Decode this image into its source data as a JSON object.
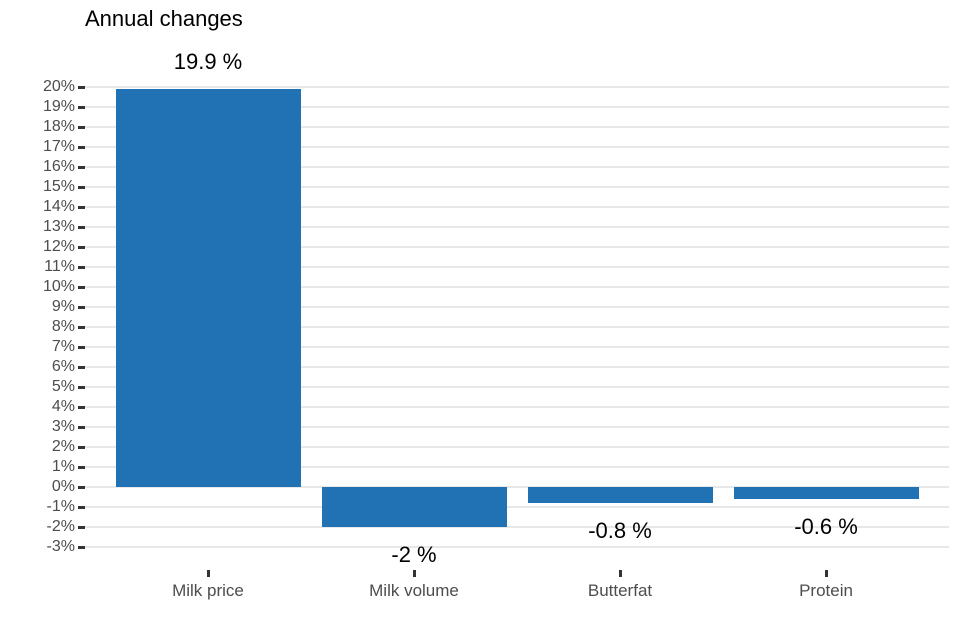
{
  "chart_data": {
    "type": "bar",
    "title": "Annual changes",
    "categories": [
      "Milk price",
      "Milk volume",
      "Butterfat",
      "Protein"
    ],
    "values": [
      19.9,
      -2,
      -0.8,
      -0.6
    ],
    "value_labels": [
      "19.9 %",
      "-2 %",
      "-0.8 %",
      "-0.6 %"
    ],
    "xlabel": "",
    "ylabel": "",
    "ylim": [
      -3,
      20
    ],
    "ytick_step": 1,
    "ytick_suffix": "%",
    "grid": "horizontal-major",
    "legend": "none",
    "colors": {
      "bar": "#2171B5",
      "gridline": "#E8E8E8",
      "axis_text": "#4D4D4D",
      "tick_mark": "#333333",
      "title": "#000000",
      "background": "#FFFFFF"
    }
  }
}
